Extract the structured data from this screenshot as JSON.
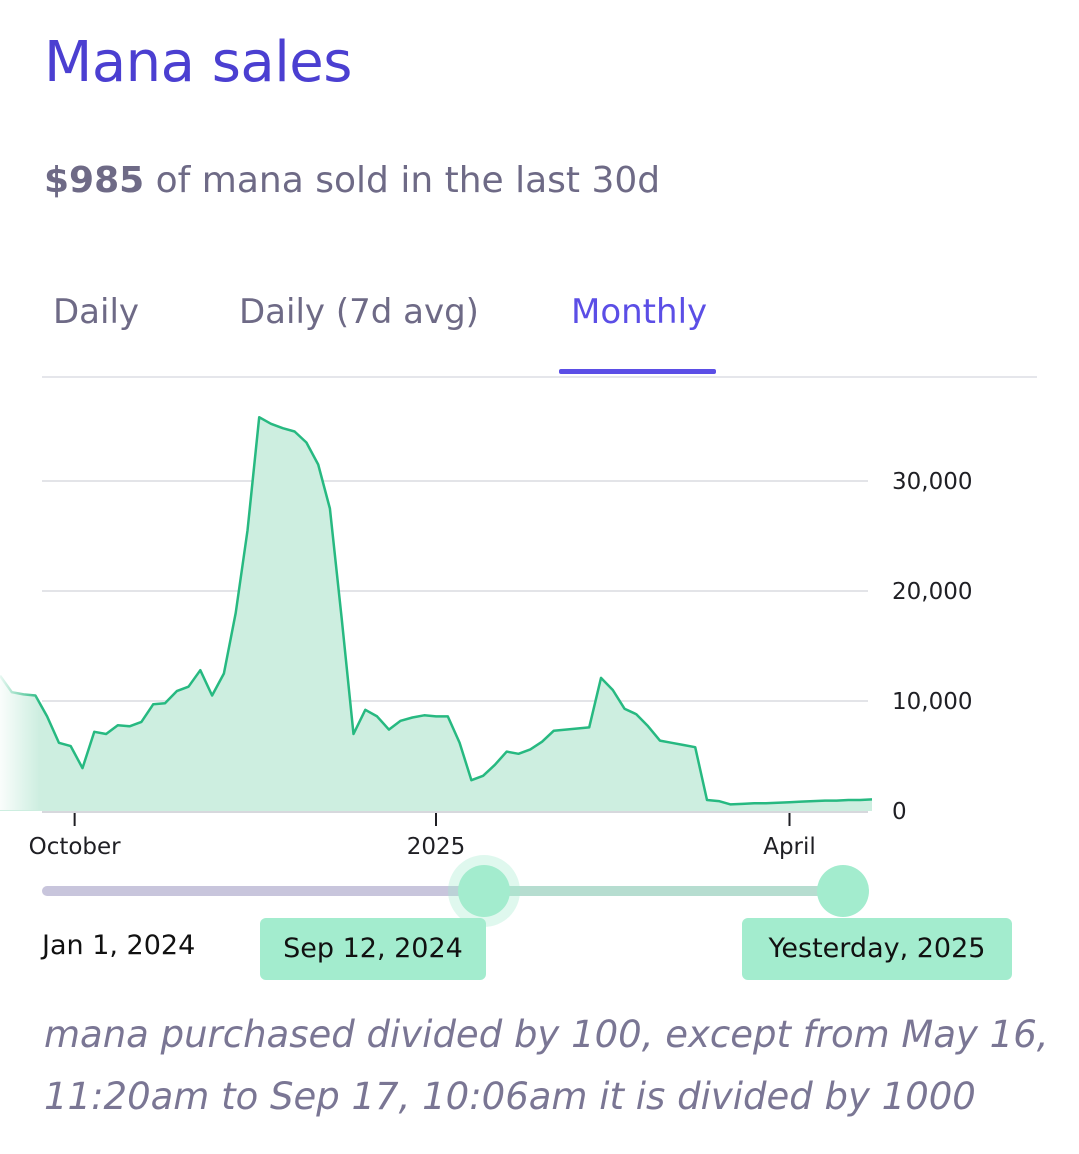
{
  "header": {
    "title": "Mana sales",
    "summary_value": "$985",
    "summary_text": " of mana sold in the last 30d"
  },
  "tabs": [
    {
      "label": "Daily",
      "active": false
    },
    {
      "label": "Daily (7d avg)",
      "active": false
    },
    {
      "label": "Monthly",
      "active": true
    }
  ],
  "colors": {
    "accent": "#5b4ee6",
    "line": "#27b981",
    "fill": "#cdeee0",
    "slider_thumb": "#a3ecce"
  },
  "chart_data": {
    "type": "area",
    "x_ticks": [
      "October",
      "2025",
      "April"
    ],
    "y_ticks": [
      "0",
      "10,000",
      "20,000",
      "30,000"
    ],
    "ylim": [
      0,
      37000
    ],
    "grid": true,
    "series": [
      {
        "x": [
          "2024-09-12",
          "2024-09-15",
          "2024-09-18",
          "2024-09-21",
          "2024-09-24",
          "2024-09-27",
          "2024-09-30",
          "2024-10-03",
          "2024-10-06",
          "2024-10-09",
          "2024-10-12",
          "2024-10-15",
          "2024-10-18",
          "2024-10-21",
          "2024-10-24",
          "2024-10-27",
          "2024-10-30",
          "2024-11-02",
          "2024-11-05",
          "2024-11-08",
          "2024-11-11",
          "2024-11-14",
          "2024-11-17",
          "2024-11-20",
          "2024-11-23",
          "2024-11-26",
          "2024-11-29",
          "2024-12-02",
          "2024-12-05",
          "2024-12-08",
          "2024-12-11",
          "2024-12-14",
          "2024-12-17",
          "2024-12-20",
          "2024-12-23",
          "2024-12-26",
          "2024-12-29",
          "2025-01-01",
          "2025-01-04",
          "2025-01-07",
          "2025-01-10",
          "2025-01-13",
          "2025-01-16",
          "2025-01-19",
          "2025-01-22",
          "2025-01-25",
          "2025-01-28",
          "2025-01-31",
          "2025-02-03",
          "2025-02-06",
          "2025-02-09",
          "2025-02-12",
          "2025-02-15",
          "2025-02-18",
          "2025-02-21",
          "2025-02-24",
          "2025-02-27",
          "2025-03-02",
          "2025-03-05",
          "2025-03-08",
          "2025-03-11",
          "2025-03-14",
          "2025-03-17",
          "2025-03-20",
          "2025-03-23",
          "2025-03-26",
          "2025-03-29",
          "2025-04-01",
          "2025-04-04",
          "2025-04-07",
          "2025-04-10",
          "2025-04-13",
          "2025-04-16",
          "2025-04-19",
          "2025-04-22"
        ],
        "values": [
          12300,
          10800,
          10600,
          10500,
          8600,
          6200,
          5900,
          3900,
          7200,
          7000,
          7800,
          7700,
          8100,
          9700,
          9800,
          10900,
          11300,
          12800,
          10500,
          12500,
          18000,
          25500,
          35800,
          35200,
          34800,
          34500,
          33500,
          31500,
          27500,
          17500,
          7000,
          9200,
          8600,
          7400,
          8200,
          8500,
          8700,
          8600,
          8600,
          6200,
          2800,
          3200,
          4200,
          5400,
          5200,
          5600,
          6300,
          7300,
          7400,
          7500,
          7600,
          12100,
          11000,
          9300,
          8800,
          7700,
          6400,
          6200,
          6000,
          5800,
          1000,
          900,
          600,
          650,
          700,
          700,
          750,
          800,
          850,
          900,
          950,
          950,
          1000,
          1000,
          1050
        ]
      }
    ]
  },
  "range": {
    "start_label": "Jan 1, 2024",
    "selected_start": "Sep 12, 2024",
    "selected_end": "Yesterday, 2025",
    "start_fraction": 0.54,
    "end_fraction": 1.0
  },
  "footnote": "mana purchased divided by 100, except from May 16, 11:20am to Sep 17, 10:06am it is divided by 1000"
}
